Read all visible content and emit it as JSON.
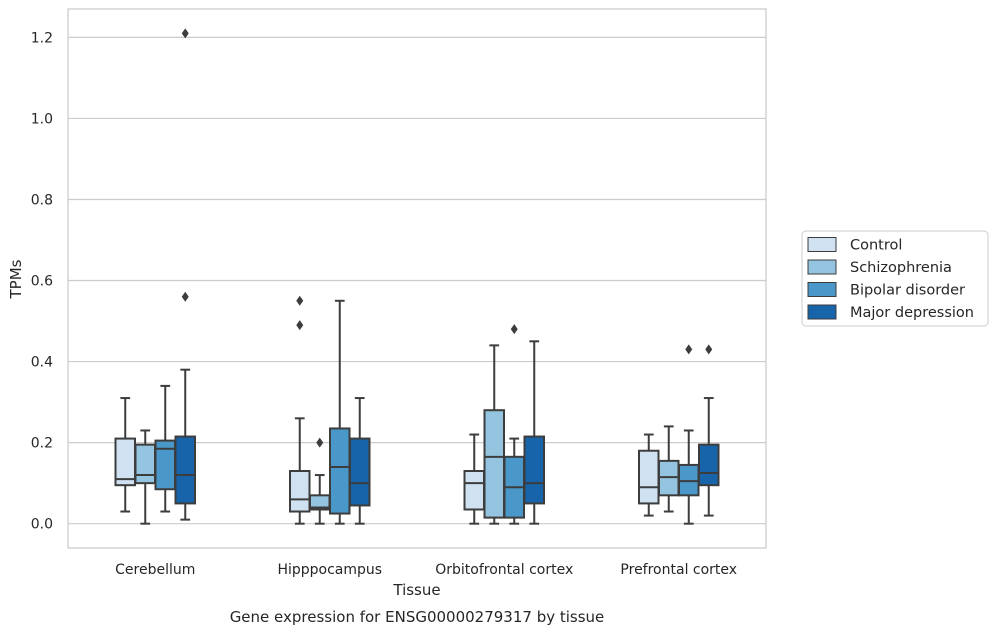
{
  "caption": "Gene expression for ENSG00000279317 by tissue",
  "chart_data": {
    "type": "box",
    "xlabel": "Tissue",
    "ylabel": "TPMs",
    "ylim": [
      -0.06,
      1.27
    ],
    "yticks": [
      0.0,
      0.2,
      0.4,
      0.6,
      0.8,
      1.0,
      1.2
    ],
    "ytick_labels": [
      "0.0",
      "0.2",
      "0.4",
      "0.6",
      "0.8",
      "1.0",
      "1.2"
    ],
    "grid": "horizontal",
    "legend_position": "right",
    "categories": [
      "Cerebellum",
      "Hipppocampus",
      "Orbitofrontal cortex",
      "Prefrontal cortex"
    ],
    "series": [
      {
        "name": "Control",
        "color": "#d0e1f2",
        "boxes": [
          {
            "whislo": 0.03,
            "q1": 0.095,
            "med": 0.11,
            "q3": 0.21,
            "whishi": 0.31,
            "fliers": []
          },
          {
            "whislo": 0.0,
            "q1": 0.03,
            "med": 0.06,
            "q3": 0.13,
            "whishi": 0.26,
            "fliers": [
              0.49,
              0.55
            ]
          },
          {
            "whislo": 0.0,
            "q1": 0.035,
            "med": 0.1,
            "q3": 0.13,
            "whishi": 0.22,
            "fliers": []
          },
          {
            "whislo": 0.02,
            "q1": 0.05,
            "med": 0.09,
            "q3": 0.18,
            "whishi": 0.22,
            "fliers": []
          }
        ]
      },
      {
        "name": "Schizophrenia",
        "color": "#94c4df",
        "boxes": [
          {
            "whislo": 0.0,
            "q1": 0.1,
            "med": 0.12,
            "q3": 0.195,
            "whishi": 0.23,
            "fliers": []
          },
          {
            "whislo": 0.0,
            "q1": 0.035,
            "med": 0.04,
            "q3": 0.07,
            "whishi": 0.12,
            "fliers": [
              0.2
            ]
          },
          {
            "whislo": 0.0,
            "q1": 0.015,
            "med": 0.165,
            "q3": 0.28,
            "whishi": 0.44,
            "fliers": []
          },
          {
            "whislo": 0.03,
            "q1": 0.07,
            "med": 0.115,
            "q3": 0.155,
            "whishi": 0.24,
            "fliers": []
          }
        ]
      },
      {
        "name": "Bipolar disorder",
        "color": "#4a98c9",
        "boxes": [
          {
            "whislo": 0.03,
            "q1": 0.085,
            "med": 0.185,
            "q3": 0.205,
            "whishi": 0.34,
            "fliers": []
          },
          {
            "whislo": 0.0,
            "q1": 0.025,
            "med": 0.14,
            "q3": 0.235,
            "whishi": 0.55,
            "fliers": []
          },
          {
            "whislo": 0.0,
            "q1": 0.015,
            "med": 0.09,
            "q3": 0.165,
            "whishi": 0.21,
            "fliers": [
              0.48
            ]
          },
          {
            "whislo": 0.0,
            "q1": 0.07,
            "med": 0.105,
            "q3": 0.145,
            "whishi": 0.23,
            "fliers": [
              0.43
            ]
          }
        ]
      },
      {
        "name": "Major depression",
        "color": "#1764ab",
        "boxes": [
          {
            "whislo": 0.01,
            "q1": 0.05,
            "med": 0.12,
            "q3": 0.215,
            "whishi": 0.38,
            "fliers": [
              0.56,
              1.21
            ]
          },
          {
            "whislo": 0.0,
            "q1": 0.045,
            "med": 0.1,
            "q3": 0.21,
            "whishi": 0.31,
            "fliers": []
          },
          {
            "whislo": 0.0,
            "q1": 0.05,
            "med": 0.1,
            "q3": 0.215,
            "whishi": 0.45,
            "fliers": []
          },
          {
            "whislo": 0.02,
            "q1": 0.095,
            "med": 0.125,
            "q3": 0.195,
            "whishi": 0.31,
            "fliers": [
              0.43
            ]
          }
        ]
      }
    ]
  }
}
